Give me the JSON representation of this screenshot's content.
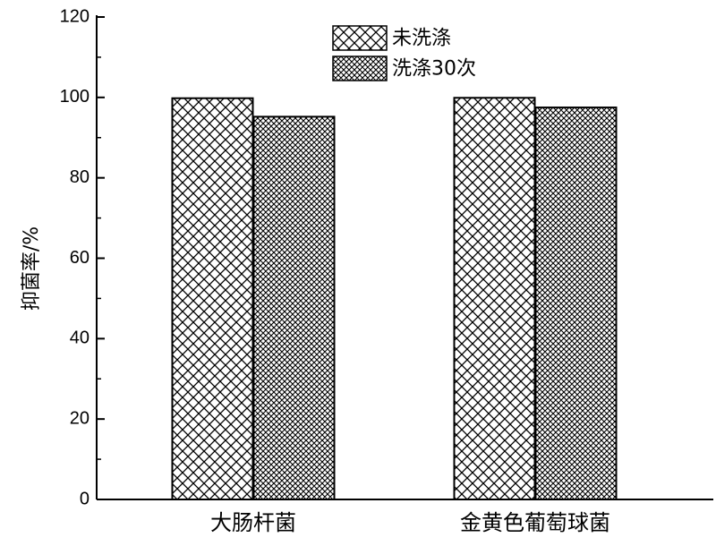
{
  "chart_data": {
    "type": "bar",
    "categories": [
      "大肠杆菌",
      "金黄色葡萄球菌"
    ],
    "series": [
      {
        "name": "未洗涤",
        "values": [
          99.8,
          99.9
        ],
        "pattern": "coarse-crosshatch"
      },
      {
        "name": "洗涤30次",
        "values": [
          95.2,
          97.5
        ],
        "pattern": "fine-crosshatch"
      }
    ],
    "title": "",
    "xlabel": "",
    "ylabel": "抑菌率/%",
    "ylim": [
      0,
      120
    ],
    "yticks": [
      0,
      20,
      40,
      60,
      80,
      100,
      120
    ],
    "legend_position": "top-center",
    "grid": false
  }
}
